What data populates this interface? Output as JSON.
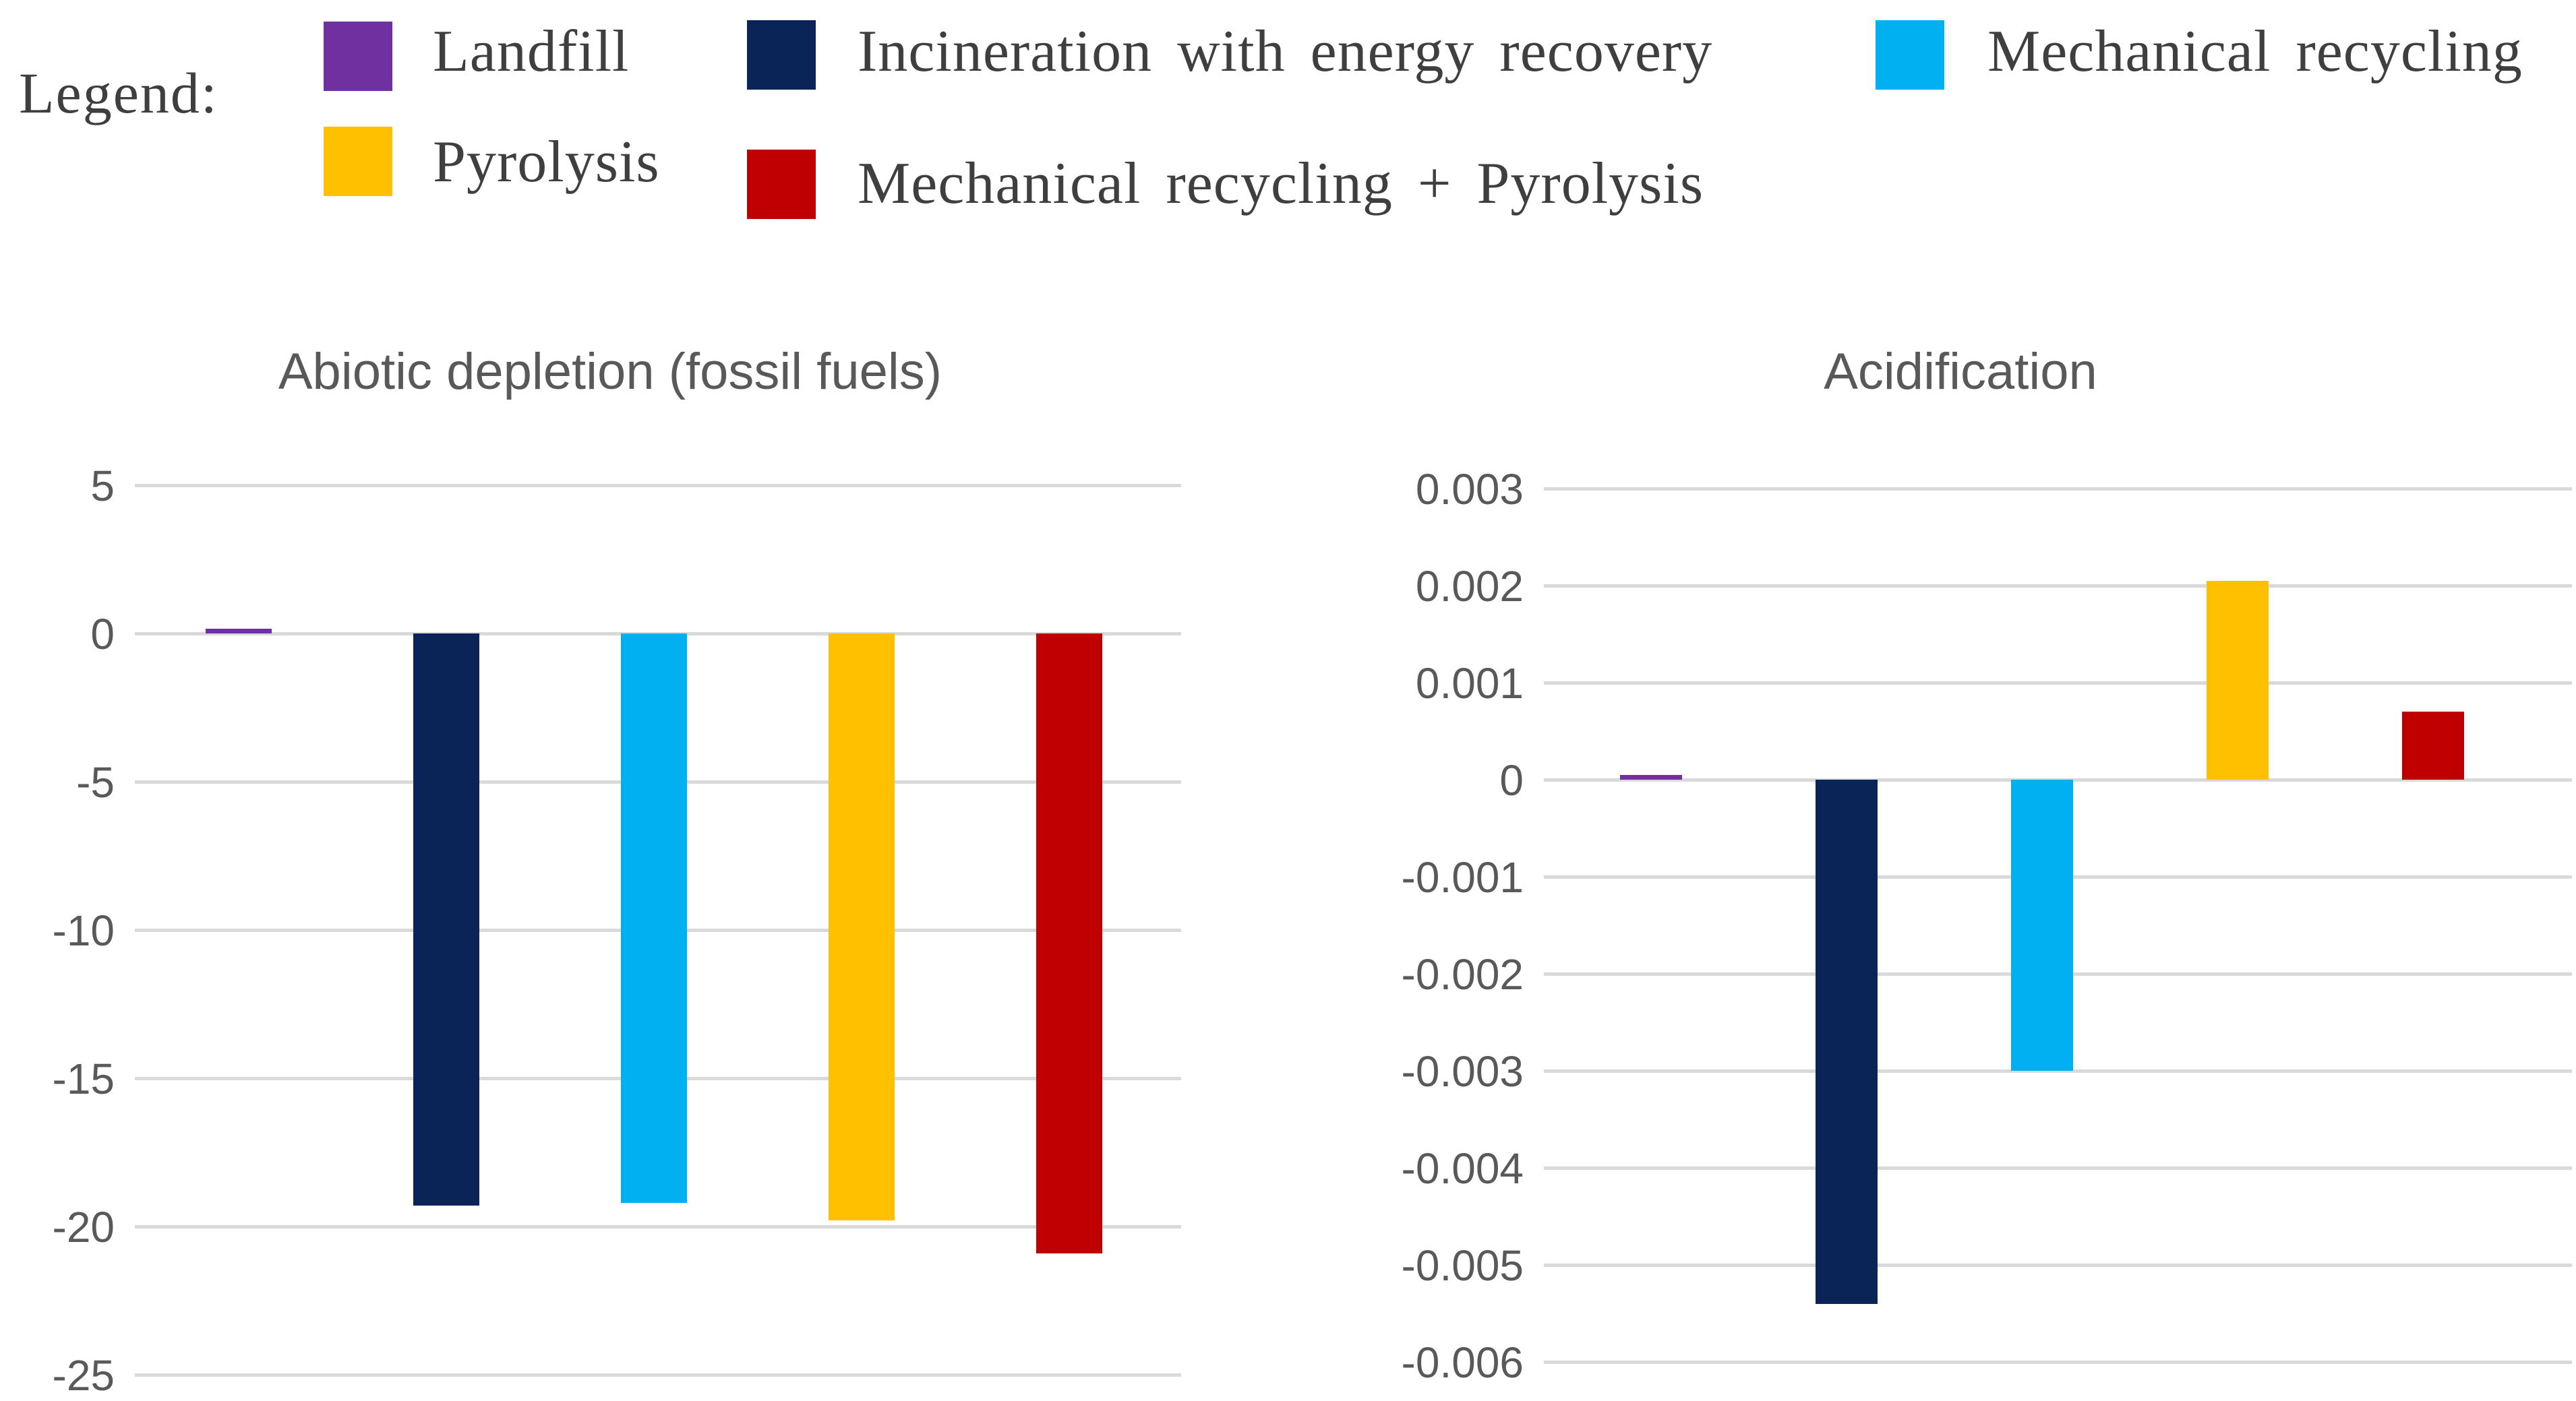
{
  "page": {
    "background": "#ffffff"
  },
  "colors": {
    "gridline": "#d9d9d9",
    "axis_text": "#595959",
    "title_text": "#595959",
    "legend_text": "#3f3f3f",
    "landfill": "#7030A0",
    "incineration": "#0a2458",
    "mechanical_recycling": "#00B0F0",
    "pyrolysis": "#FFC000",
    "mechanical_recycling_plus_pyrolysis": "#C00000"
  },
  "legend": {
    "label": "Legend:",
    "items": [
      {
        "label": "Landfill",
        "color": "#7030A0"
      },
      {
        "label": "Incineration with energy recovery",
        "color": "#0a2458"
      },
      {
        "label": "Mechanical recycling",
        "color": "#00B0F0"
      },
      {
        "label": "Pyrolysis",
        "color": "#FFC000"
      },
      {
        "label": "Mechanical recycling + Pyrolysis",
        "color": "#C00000"
      }
    ]
  },
  "chart_data": [
    {
      "type": "bar",
      "title": "Abiotic depletion (fossil fuels)",
      "categories": [
        "Landfill",
        "Incineration with energy recovery",
        "Mechanical recycling",
        "Pyrolysis",
        "Mechanical recycling + Pyrolysis"
      ],
      "values": [
        0.15,
        -19.3,
        -19.2,
        -19.8,
        -20.9
      ],
      "bar_colors": [
        "#7030A0",
        "#0a2458",
        "#00B0F0",
        "#FFC000",
        "#C00000"
      ],
      "xlabel": "",
      "ylabel": "",
      "ylim": [
        -25,
        5
      ],
      "grid": true,
      "legend_position": "top",
      "yticks": [
        {
          "label": "5",
          "value": 5
        },
        {
          "label": "0",
          "value": 0
        },
        {
          "label": "-5",
          "value": -5
        },
        {
          "label": "-10",
          "value": -10
        },
        {
          "label": "-15",
          "value": -15
        },
        {
          "label": "-20",
          "value": -20
        },
        {
          "label": "-25",
          "value": -25
        }
      ]
    },
    {
      "type": "bar",
      "title": "Acidification",
      "categories": [
        "Landfill",
        "Incineration with energy recovery",
        "Mechanical recycling",
        "Pyrolysis",
        "Mechanical recycling + Pyrolysis"
      ],
      "values": [
        5e-05,
        -0.0054,
        -0.003,
        0.00205,
        0.0007
      ],
      "bar_colors": [
        "#7030A0",
        "#0a2458",
        "#00B0F0",
        "#FFC000",
        "#C00000"
      ],
      "xlabel": "",
      "ylabel": "",
      "ylim": [
        -0.006,
        0.003
      ],
      "grid": true,
      "legend_position": "top",
      "yticks": [
        {
          "label": "0.003",
          "value": 0.003
        },
        {
          "label": "0.002",
          "value": 0.002
        },
        {
          "label": "0.001",
          "value": 0.001
        },
        {
          "label": "0",
          "value": 0
        },
        {
          "label": "-0.001",
          "value": -0.001
        },
        {
          "label": "-0.002",
          "value": -0.002
        },
        {
          "label": "-0.003",
          "value": -0.003
        },
        {
          "label": "-0.004",
          "value": -0.004
        },
        {
          "label": "-0.005",
          "value": -0.005
        },
        {
          "label": "-0.006",
          "value": -0.006
        }
      ]
    }
  ]
}
